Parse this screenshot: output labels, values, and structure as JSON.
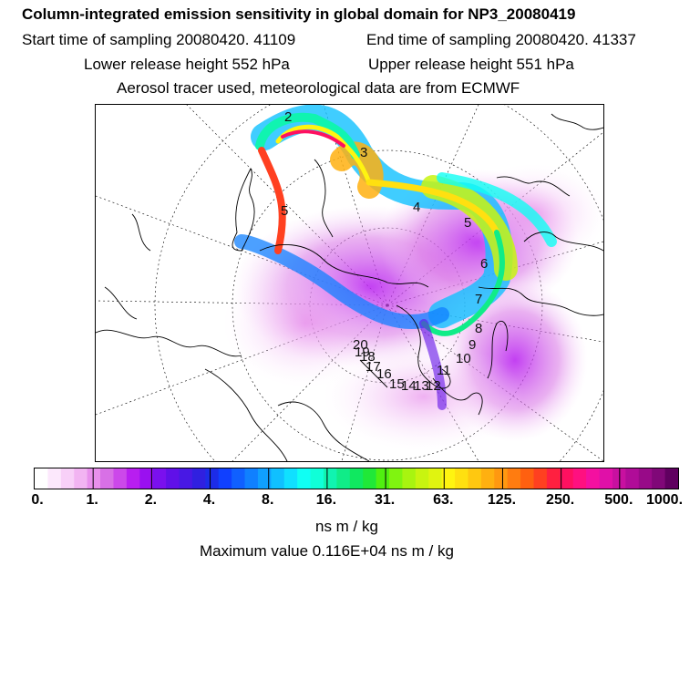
{
  "header": {
    "title": "Column-integrated emission sensitivity in global domain for NP3_20080419",
    "start_time": "Start time of sampling 20080420. 41109",
    "end_time": "End time of sampling 20080420. 41337",
    "lower_height": "Lower release height  552 hPa",
    "upper_height": "Upper release height  551 hPa",
    "tracer_note": "Aerosol tracer used, meteorological data are from ECMWF"
  },
  "chart_data": {
    "type": "heatmap",
    "colorbar": {
      "tick_labels": [
        "0.",
        "1.",
        "2.",
        "4.",
        "8.",
        "16.",
        "31.",
        "63.",
        "125.",
        "250.",
        "500.",
        "1000."
      ],
      "colors": [
        "#ffffff",
        "#fce8fc",
        "#f8d0f8",
        "#f2b4f2",
        "#e890ec",
        "#d870e6",
        "#cc48ea",
        "#b81ef0",
        "#9a10f0",
        "#7a10ee",
        "#6010e8",
        "#4818e4",
        "#3020e0",
        "#1c2ce8",
        "#1040ff",
        "#1060ff",
        "#1080ff",
        "#10a0ff",
        "#10c0ff",
        "#10e0ff",
        "#10fff4",
        "#10ffd8",
        "#10f4b0",
        "#10ec88",
        "#10e860",
        "#20e838",
        "#50f010",
        "#80f410",
        "#a8f410",
        "#c8f410",
        "#e0f410",
        "#fff410",
        "#ffe010",
        "#ffc810",
        "#ffb010",
        "#ff9810",
        "#ff7c10",
        "#ff6010",
        "#ff4020",
        "#ff2040",
        "#ff1060",
        "#ff1080",
        "#f410a0",
        "#e010a8",
        "#c810a0",
        "#b00c98",
        "#980a88",
        "#800878",
        "#600060"
      ],
      "unit": "ns m / kg"
    },
    "maximum_value": "Maximum value  0.116E+04 ns m / kg",
    "day_markers": [
      "2",
      "3",
      "4",
      "5",
      "5",
      "6",
      "7",
      "8",
      "9",
      "10",
      "11",
      "12",
      "13",
      "14",
      "15",
      "16",
      "17",
      "18",
      "19",
      "20"
    ]
  },
  "colors": {
    "grid": "#000000",
    "background": "#ffffff"
  }
}
